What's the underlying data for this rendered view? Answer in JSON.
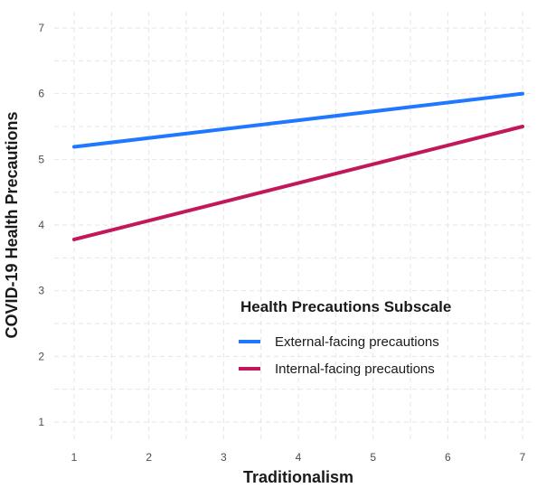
{
  "chart_data": {
    "type": "line",
    "title": "",
    "xlabel": "Traditionalism",
    "ylabel": "COVID-19 Health Precautions",
    "xlim": [
      1,
      7
    ],
    "ylim": [
      1,
      7
    ],
    "x_ticks": [
      1,
      2,
      3,
      4,
      5,
      6,
      7
    ],
    "y_ticks": [
      1,
      2,
      3,
      4,
      5,
      6,
      7
    ],
    "grid": true,
    "legend": {
      "title": "Health Precautions Subscale",
      "placement": "bottom-right"
    },
    "x": [
      1,
      7
    ],
    "series": [
      {
        "name": "External-facing precautions",
        "values": [
          5.19,
          6.0
        ],
        "color": "#1f78ff"
      },
      {
        "name": "Internal-facing precautions",
        "values": [
          3.78,
          5.5
        ],
        "color": "#c2185b"
      }
    ]
  }
}
